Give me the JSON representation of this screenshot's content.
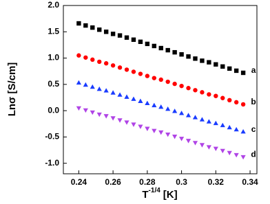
{
  "chart_data": {
    "type": "scatter",
    "xlabel": {
      "base": "T",
      "sup": "-1/4",
      "unit": "[K]"
    },
    "ylabel": "Lnσ [S/cm]",
    "xlim": [
      0.231,
      0.344
    ],
    "ylim": [
      -1.2,
      2.0
    ],
    "xticks": [
      0.24,
      0.26,
      0.28,
      0.3,
      0.32,
      0.34
    ],
    "yticks": [
      {
        "value": 2.0,
        "label": "2.0"
      },
      1.5,
      {
        "value": 1.0,
        "label": "1.0"
      },
      0.5,
      {
        "value": 0.0,
        "label": "0.0"
      },
      -0.5,
      {
        "value": -1.0,
        "label": "-1.0"
      }
    ],
    "x": [
      0.24,
      0.244,
      0.248,
      0.252,
      0.256,
      0.26,
      0.264,
      0.268,
      0.272,
      0.276,
      0.28,
      0.284,
      0.288,
      0.292,
      0.296,
      0.3,
      0.304,
      0.308,
      0.312,
      0.316,
      0.32,
      0.324,
      0.328,
      0.332,
      0.336
    ],
    "series": [
      {
        "name": "a",
        "color": "#000000",
        "marker": "square",
        "values": [
          1.66,
          1.62,
          1.58,
          1.54,
          1.5,
          1.46,
          1.43,
          1.39,
          1.35,
          1.31,
          1.27,
          1.23,
          1.19,
          1.15,
          1.11,
          1.07,
          1.03,
          0.99,
          0.95,
          0.92,
          0.88,
          0.84,
          0.8,
          0.76,
          0.72
        ]
      },
      {
        "name": "b",
        "color": "#ff0000",
        "marker": "circle",
        "values": [
          1.05,
          1.01,
          0.97,
          0.93,
          0.9,
          0.86,
          0.82,
          0.78,
          0.74,
          0.7,
          0.66,
          0.62,
          0.59,
          0.55,
          0.51,
          0.47,
          0.43,
          0.39,
          0.35,
          0.31,
          0.28,
          0.24,
          0.2,
          0.16,
          0.12
        ]
      },
      {
        "name": "c",
        "color": "#1a3cff",
        "marker": "triangle-up",
        "values": [
          0.53,
          0.49,
          0.45,
          0.41,
          0.38,
          0.34,
          0.3,
          0.26,
          0.22,
          0.18,
          0.14,
          0.1,
          0.07,
          0.03,
          -0.01,
          -0.05,
          -0.09,
          -0.13,
          -0.17,
          -0.21,
          -0.24,
          -0.28,
          -0.32,
          -0.36,
          -0.4
        ]
      },
      {
        "name": "d",
        "color": "#b044e6",
        "marker": "triangle-down",
        "values": [
          0.05,
          0.01,
          -0.03,
          -0.07,
          -0.1,
          -0.14,
          -0.18,
          -0.22,
          -0.26,
          -0.3,
          -0.34,
          -0.38,
          -0.41,
          -0.45,
          -0.49,
          -0.53,
          -0.57,
          -0.61,
          -0.65,
          -0.69,
          -0.72,
          -0.76,
          -0.8,
          -0.84,
          -0.88
        ]
      }
    ]
  }
}
